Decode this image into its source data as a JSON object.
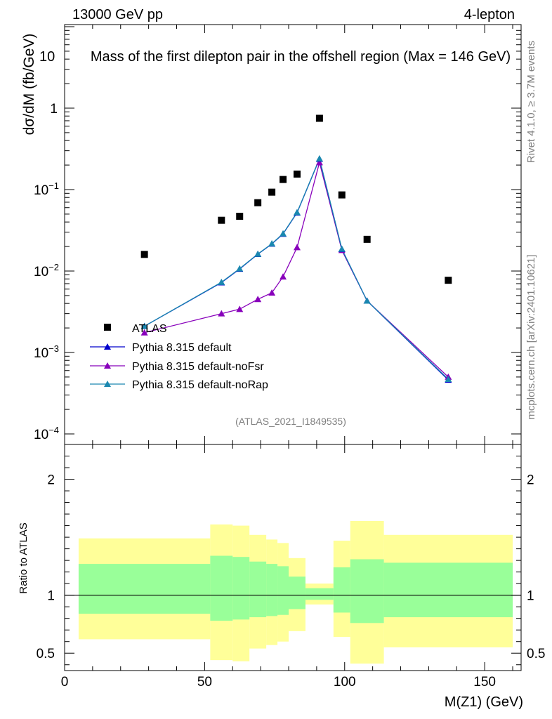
{
  "header": {
    "energy": "13000 GeV pp",
    "channel": "4-lepton",
    "title": "Mass of the first dilepton pair in the offshell region (Max = 146 GeV)",
    "title_overlap_prefix": "10",
    "side_rivet": "Rivet 4.1.0, ≥ 3.7M events",
    "side_mcplots": "mcplots.cern.ch [arXiv:2401.10621]",
    "analysis_id": "(ATLAS_2021_I1849535)"
  },
  "colors": {
    "atlas": "#000000",
    "default": "#0000cc",
    "noFsr": "#8800bb",
    "noRap": "#1a88b0",
    "band_outer": "#ffff99",
    "band_inner": "#99ff99"
  },
  "chart_data": [
    {
      "type": "line",
      "panel": "main",
      "xlabel": "",
      "ylabel": "dσ/dM (fb/GeV)",
      "xlim": [
        0,
        163
      ],
      "ylim": [
        0.0001,
        10
      ],
      "yscale": "log",
      "ytick_labels": [
        {
          "base": "10",
          "exp": "−4",
          "value": 0.0001
        },
        {
          "base": "10",
          "exp": "−3",
          "value": 0.001
        },
        {
          "base": "10",
          "exp": "−2",
          "value": 0.01
        },
        {
          "base": "10",
          "exp": "−1",
          "value": 0.1
        },
        {
          "base": "1",
          "exp": "",
          "value": 1
        }
      ],
      "series": [
        {
          "name": "ATLAS",
          "marker": "square",
          "color_key": "atlas",
          "x": [
            28.5,
            56,
            62.5,
            69,
            74,
            78,
            83,
            91,
            99,
            108,
            137
          ],
          "y": [
            0.016,
            0.042,
            0.047,
            0.069,
            0.093,
            0.133,
            0.155,
            0.75,
            0.086,
            0.0245,
            0.0077
          ]
        },
        {
          "name": "Pythia 8.315 default",
          "marker": "triangle",
          "color_key": "default",
          "x": [
            28.5,
            56,
            62.5,
            69,
            74,
            78,
            83,
            91,
            99,
            108,
            137
          ],
          "y": [
            0.0021,
            0.0072,
            0.0106,
            0.0161,
            0.0215,
            0.0285,
            0.052,
            0.237,
            0.0185,
            0.0043,
            0.00046
          ]
        },
        {
          "name": "Pythia 8.315 default-noFsr",
          "marker": "triangle",
          "color_key": "noFsr",
          "x": [
            28.5,
            56,
            62.5,
            69,
            74,
            78,
            83,
            91,
            99,
            108,
            137
          ],
          "y": [
            0.00175,
            0.003,
            0.0034,
            0.0045,
            0.0054,
            0.0085,
            0.0195,
            0.215,
            0.018,
            0.0043,
            0.0005
          ]
        },
        {
          "name": "Pythia 8.315 default-noRap",
          "marker": "triangle",
          "color_key": "noRap",
          "x": [
            28.5,
            56,
            62.5,
            69,
            74,
            78,
            83,
            91,
            99,
            108,
            137
          ],
          "y": [
            0.0021,
            0.0073,
            0.0107,
            0.0162,
            0.0217,
            0.0288,
            0.0525,
            0.24,
            0.0187,
            0.0043,
            0.00047
          ]
        }
      ]
    },
    {
      "type": "area",
      "panel": "ratio",
      "xlabel": "M(Z1) (GeV)",
      "ylabel": "Ratio to ATLAS",
      "xlim": [
        0,
        163
      ],
      "ylim": [
        0.35,
        2.3
      ],
      "xtick_labels": [
        "0",
        "50",
        "100",
        "150"
      ],
      "xtick_values": [
        0,
        50,
        100,
        150
      ],
      "ytick_labels": [
        "0.5",
        "1",
        "2"
      ],
      "ytick_values": [
        0.5,
        1,
        2
      ],
      "bins": [
        {
          "x0": 5,
          "x1": 52,
          "outer": [
            0.62,
            1.49
          ],
          "inner": [
            0.84,
            1.27
          ]
        },
        {
          "x0": 52,
          "x1": 60,
          "outer": [
            0.44,
            1.61
          ],
          "inner": [
            0.78,
            1.34
          ]
        },
        {
          "x0": 60,
          "x1": 66,
          "outer": [
            0.43,
            1.6
          ],
          "inner": [
            0.79,
            1.33
          ]
        },
        {
          "x0": 66,
          "x1": 72,
          "outer": [
            0.54,
            1.52
          ],
          "inner": [
            0.81,
            1.29
          ]
        },
        {
          "x0": 72,
          "x1": 76,
          "outer": [
            0.57,
            1.48
          ],
          "inner": [
            0.82,
            1.27
          ]
        },
        {
          "x0": 76,
          "x1": 80,
          "outer": [
            0.6,
            1.45
          ],
          "inner": [
            0.83,
            1.25
          ]
        },
        {
          "x0": 80,
          "x1": 86,
          "outer": [
            0.69,
            1.32
          ],
          "inner": [
            0.88,
            1.16
          ]
        },
        {
          "x0": 86,
          "x1": 96,
          "outer": [
            0.92,
            1.1
          ],
          "inner": [
            0.96,
            1.06
          ]
        },
        {
          "x0": 96,
          "x1": 102,
          "outer": [
            0.64,
            1.47
          ],
          "inner": [
            0.85,
            1.24
          ]
        },
        {
          "x0": 102,
          "x1": 114,
          "outer": [
            0.41,
            1.64
          ],
          "inner": [
            0.76,
            1.31
          ]
        },
        {
          "x0": 114,
          "x1": 160,
          "outer": [
            0.55,
            1.52
          ],
          "inner": [
            0.81,
            1.28
          ]
        }
      ],
      "reference_line": 1
    }
  ]
}
